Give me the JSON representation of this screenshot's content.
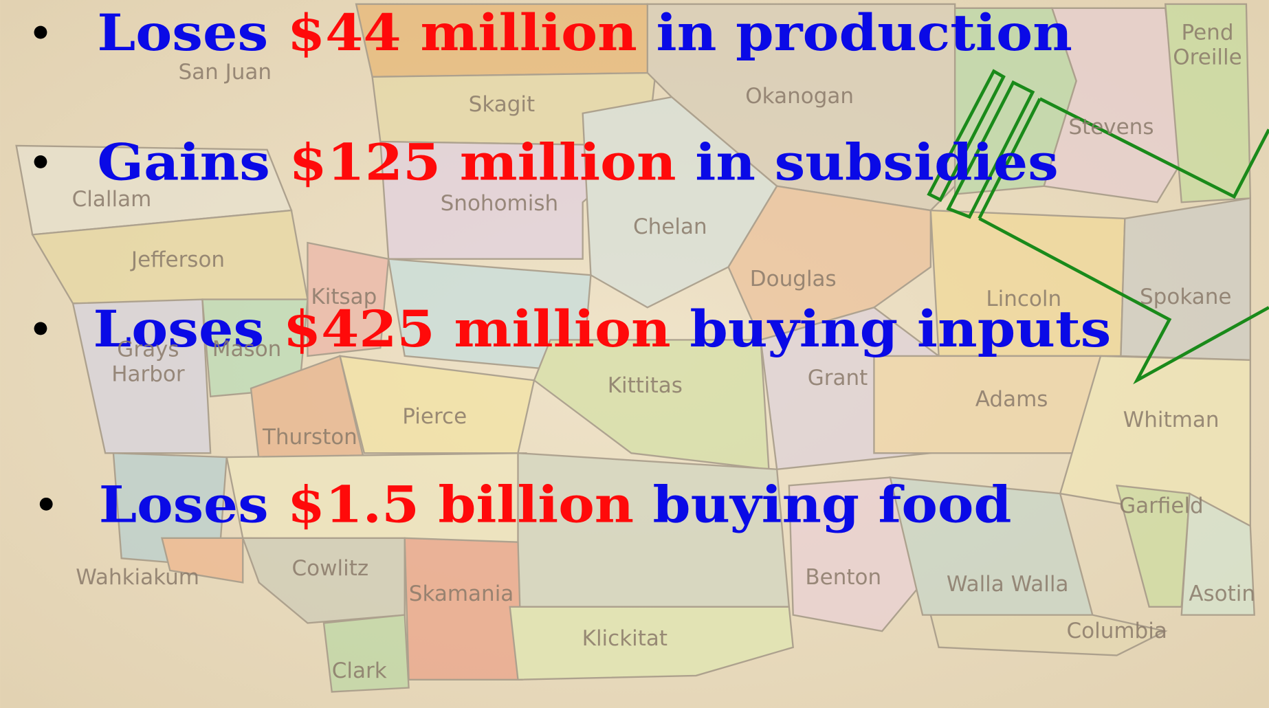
{
  "bullets": [
    {
      "lead": "Loses",
      "amount": "$44 million",
      "rest": "in production"
    },
    {
      "lead": "Gains",
      "amount": "$125 million",
      "rest": "in subsidies"
    },
    {
      "lead": "Loses",
      "amount": "$425 million",
      "rest": "buying inputs"
    },
    {
      "lead": "Loses",
      "amount": "$1.5 billion",
      "rest": "buying food"
    }
  ],
  "map": {
    "counties": [
      "San Juan",
      "Skagit",
      "Okanogan",
      "Pend Oreille",
      "Stevens",
      "Clallam",
      "Snohomish",
      "Chelan",
      "Jefferson",
      "Douglas",
      "Lincoln",
      "Spokane",
      "Kitsap",
      "Grays Harbor",
      "Mason",
      "Kittitas",
      "Grant",
      "Adams",
      "Whitman",
      "Pierce",
      "Thurston",
      "Garfield",
      "Wahkiakum",
      "Cowlitz",
      "Skamania",
      "Benton",
      "Walla Walla",
      "Asotin",
      "Columbia",
      "Klickitat",
      "Clark"
    ]
  }
}
